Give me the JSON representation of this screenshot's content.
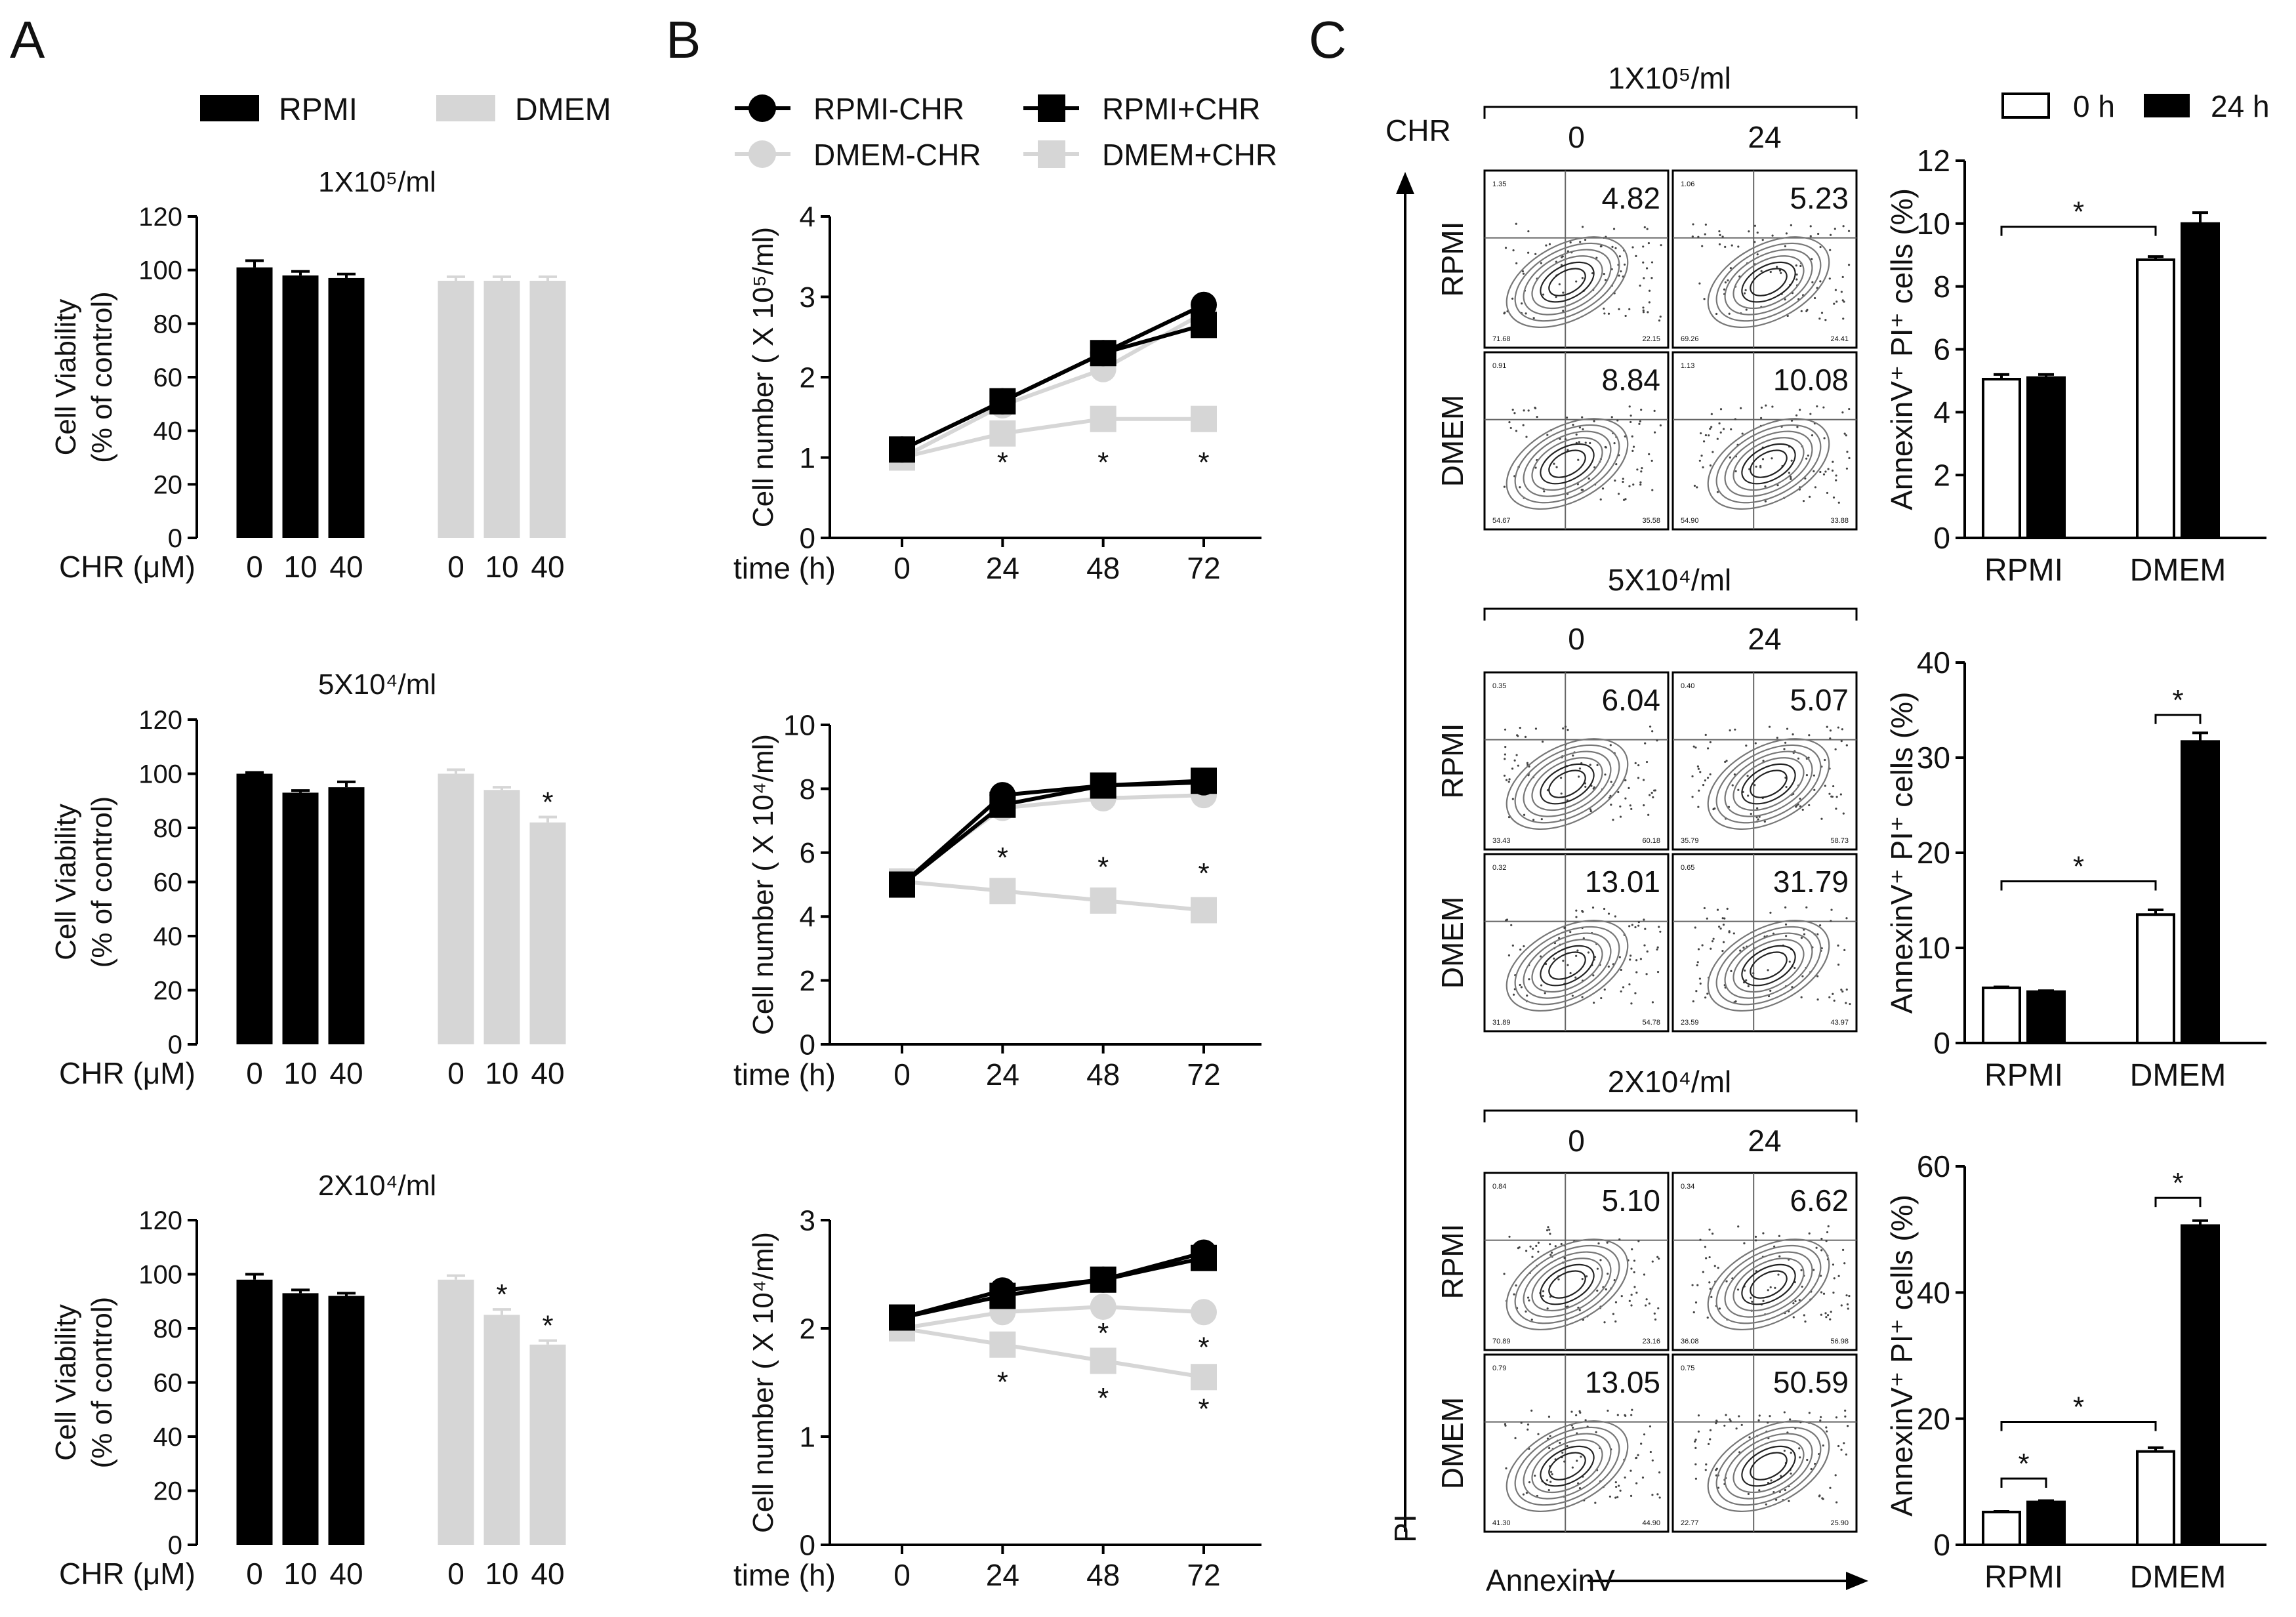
{
  "figure": {
    "panel_letters": [
      "A",
      "B",
      "C"
    ]
  },
  "colors": {
    "rpmi": "#000000",
    "dmem": "#d6d6d6",
    "open": "#ffffff",
    "plot_grey": "#888888"
  },
  "panel_a": {
    "legend": [
      "RPMI",
      "DMEM"
    ],
    "ylabel_lines": [
      "Cell Viability",
      "(% of control)"
    ],
    "xlabel": "CHR (μM)",
    "tick_labels": [
      "0",
      "10",
      "40",
      "0",
      "10",
      "40"
    ],
    "y_ticks": [
      "0",
      "20",
      "40",
      "60",
      "80",
      "100",
      "120"
    ],
    "sig_mark": "*"
  },
  "panel_b": {
    "legend": [
      "RPMI-CHR",
      "RPMI+CHR",
      "DMEM-CHR",
      "DMEM+CHR"
    ],
    "xlabel": "time (h)",
    "x_ticks": [
      "0",
      "24",
      "48",
      "72"
    ],
    "sig_mark": "*"
  },
  "panel_c": {
    "chr_label": "CHR",
    "time_labels": [
      "0",
      "24"
    ],
    "row_labels": [
      "RPMI",
      "DMEM"
    ],
    "y_axis_label": "PI",
    "x_axis_label": "AnnexinV",
    "legend": [
      "0 h",
      "24 h"
    ],
    "bar_ylabel": "AnnexinV⁺ PI⁺ cells (%)",
    "bar_groups": [
      "RPMI",
      "DMEM"
    ],
    "sig_mark": "*",
    "quadrant_values": [
      [
        [
          "4.82",
          "5.23"
        ],
        [
          "8.84",
          "10.08"
        ]
      ],
      [
        [
          "6.04",
          "5.07"
        ],
        [
          "13.01",
          "31.79"
        ]
      ],
      [
        [
          "5.10",
          "6.62"
        ],
        [
          "13.05",
          "50.59"
        ]
      ]
    ],
    "corner_values": [
      [
        [
          [
            "1.35",
            "71.68",
            "22.15"
          ],
          [
            "1.06",
            "69.26",
            "24.41"
          ]
        ],
        [
          [
            "0.91",
            "54.67",
            "35.58"
          ],
          [
            "1.13",
            "54.90",
            "33.88"
          ]
        ]
      ],
      [
        [
          [
            "0.35",
            "33.43",
            "60.18"
          ],
          [
            "0.40",
            "35.79",
            "58.73"
          ]
        ],
        [
          [
            "0.32",
            "31.89",
            "54.78"
          ],
          [
            "0.65",
            "23.59",
            "43.97"
          ]
        ]
      ],
      [
        [
          [
            "0.84",
            "70.89",
            "23.16"
          ],
          [
            "0.34",
            "36.08",
            "56.98"
          ]
        ],
        [
          [
            "0.79",
            "41.30",
            "44.90"
          ],
          [
            "0.75",
            "22.77",
            "25.90"
          ]
        ]
      ]
    ]
  },
  "chart_data": [
    {
      "id": "A1",
      "type": "bar",
      "title": "1X10⁵/ml",
      "categories": [
        "RPMI 0",
        "RPMI 10",
        "RPMI 40",
        "DMEM 0",
        "DMEM 10",
        "DMEM 40"
      ],
      "values": [
        101,
        98,
        97,
        96,
        96,
        96
      ],
      "errors": [
        2.5,
        1.5,
        1.5,
        1.5,
        1.5,
        1.5
      ],
      "significant": [
        false,
        false,
        false,
        false,
        false,
        false
      ],
      "ylabel": "Cell Viability (% of control)",
      "xlabel": "CHR (μM)",
      "ylim": [
        0,
        120
      ],
      "yticks": [
        0,
        20,
        40,
        60,
        80,
        100,
        120
      ]
    },
    {
      "id": "A2",
      "type": "bar",
      "title": "5X10⁴/ml",
      "categories": [
        "RPMI 0",
        "RPMI 10",
        "RPMI 40",
        "DMEM 0",
        "DMEM 10",
        "DMEM 40"
      ],
      "values": [
        100,
        93,
        95,
        100,
        94,
        82
      ],
      "errors": [
        0.5,
        0.8,
        2,
        1.5,
        1,
        2
      ],
      "significant": [
        false,
        false,
        false,
        false,
        false,
        true
      ],
      "ylabel": "Cell Viability (% of control)",
      "xlabel": "CHR (μM)",
      "ylim": [
        0,
        120
      ],
      "yticks": [
        0,
        20,
        40,
        60,
        80,
        100,
        120
      ]
    },
    {
      "id": "A3",
      "type": "bar",
      "title": "2X10⁴/ml",
      "categories": [
        "RPMI 0",
        "RPMI 10",
        "RPMI 40",
        "DMEM 0",
        "DMEM 10",
        "DMEM 40"
      ],
      "values": [
        98,
        93,
        92,
        98,
        85,
        74
      ],
      "errors": [
        2,
        1.2,
        1,
        1.5,
        2,
        1.5
      ],
      "significant": [
        false,
        false,
        false,
        false,
        true,
        true
      ],
      "ylabel": "Cell Viability (% of control)",
      "xlabel": "CHR (μM)",
      "ylim": [
        0,
        120
      ],
      "yticks": [
        0,
        20,
        40,
        60,
        80,
        100,
        120
      ]
    },
    {
      "id": "B1",
      "type": "line",
      "ylabel": "Cell number ( X 10⁵/ml)",
      "xlabel": "time (h)",
      "x": [
        0,
        24,
        48,
        72
      ],
      "ylim": [
        0,
        4
      ],
      "yticks": [
        0,
        1,
        2,
        3,
        4
      ],
      "series": [
        {
          "name": "RPMI-CHR",
          "values": [
            1.1,
            1.7,
            2.3,
            2.9
          ]
        },
        {
          "name": "RPMI+CHR",
          "values": [
            1.1,
            1.7,
            2.3,
            2.65
          ]
        },
        {
          "name": "DMEM-CHR",
          "values": [
            1.0,
            1.65,
            2.1,
            2.8
          ]
        },
        {
          "name": "DMEM+CHR",
          "values": [
            1.0,
            1.3,
            1.48,
            1.48
          ]
        }
      ],
      "sig_x": [
        24,
        48,
        72
      ],
      "sig_y": [
        1.0,
        1.0,
        1.0
      ]
    },
    {
      "id": "B2",
      "type": "line",
      "ylabel": "Cell number ( X 10⁴/ml)",
      "xlabel": "time (h)",
      "x": [
        0,
        24,
        48,
        72
      ],
      "ylim": [
        0,
        10
      ],
      "yticks": [
        0,
        2,
        4,
        6,
        8,
        10
      ],
      "series": [
        {
          "name": "RPMI-CHR",
          "values": [
            5.0,
            7.8,
            8.1,
            8.2
          ]
        },
        {
          "name": "RPMI+CHR",
          "values": [
            5.0,
            7.5,
            8.1,
            8.25
          ]
        },
        {
          "name": "DMEM-CHR",
          "values": [
            5.1,
            7.4,
            7.7,
            7.8
          ]
        },
        {
          "name": "DMEM+CHR",
          "values": [
            5.1,
            4.8,
            4.5,
            4.2
          ]
        }
      ],
      "sig_x": [
        24,
        48,
        72
      ],
      "sig_y": [
        6.0,
        5.7,
        5.5
      ]
    },
    {
      "id": "B3",
      "type": "line",
      "ylabel": "Cell number ( X 10⁴/ml)",
      "xlabel": "time (h)",
      "x": [
        0,
        24,
        48,
        72
      ],
      "ylim": [
        0,
        3
      ],
      "yticks": [
        0,
        1,
        2,
        3
      ],
      "series": [
        {
          "name": "RPMI-CHR",
          "values": [
            2.1,
            2.35,
            2.45,
            2.7
          ]
        },
        {
          "name": "RPMI+CHR",
          "values": [
            2.1,
            2.3,
            2.45,
            2.65
          ]
        },
        {
          "name": "DMEM-CHR",
          "values": [
            2.0,
            2.15,
            2.2,
            2.15
          ]
        },
        {
          "name": "DMEM+CHR",
          "values": [
            2.0,
            1.85,
            1.7,
            1.55
          ]
        }
      ],
      "sig_x": [
        24,
        48,
        72,
        48,
        72
      ],
      "sig_y": [
        1.55,
        1.4,
        1.3,
        2.0,
        1.87
      ]
    },
    {
      "id": "C1",
      "type": "bar",
      "categories": [
        "RPMI",
        "DMEM"
      ],
      "series": [
        {
          "name": "0 h",
          "values": [
            5.05,
            8.85
          ],
          "errors": [
            0.15,
            0.1
          ]
        },
        {
          "name": "24 h",
          "values": [
            5.1,
            10.0
          ],
          "errors": [
            0.1,
            0.35
          ]
        }
      ],
      "ylabel": "AnnexinV⁺ PI⁺ cells (%)",
      "ylim": [
        0,
        12
      ],
      "yticks": [
        0,
        2,
        4,
        6,
        8,
        10,
        12
      ],
      "brackets": [
        {
          "from": [
            0,
            0
          ],
          "to": [
            1,
            0
          ],
          "y": 9.9
        }
      ]
    },
    {
      "id": "C2",
      "type": "bar",
      "categories": [
        "RPMI",
        "DMEM"
      ],
      "series": [
        {
          "name": "0 h",
          "values": [
            5.8,
            13.5
          ],
          "errors": [
            0.1,
            0.5
          ]
        },
        {
          "name": "24 h",
          "values": [
            5.4,
            31.7
          ],
          "errors": [
            0.1,
            0.9
          ]
        }
      ],
      "ylabel": "AnnexinV⁺ PI⁺ cells (%)",
      "ylim": [
        0,
        40
      ],
      "yticks": [
        0,
        10,
        20,
        30,
        40
      ],
      "brackets": [
        {
          "from": [
            0,
            0
          ],
          "to": [
            1,
            0
          ],
          "y": 17
        },
        {
          "from": [
            1,
            0
          ],
          "to": [
            1,
            1
          ],
          "y": 34.5
        }
      ]
    },
    {
      "id": "C3",
      "type": "bar",
      "categories": [
        "RPMI",
        "DMEM"
      ],
      "series": [
        {
          "name": "0 h",
          "values": [
            5.2,
            14.8
          ],
          "errors": [
            0.1,
            0.6
          ]
        },
        {
          "name": "24 h",
          "values": [
            6.8,
            50.6
          ],
          "errors": [
            0.2,
            0.8
          ]
        }
      ],
      "ylabel": "AnnexinV⁺ PI⁺ cells (%)",
      "ylim": [
        0,
        60
      ],
      "yticks": [
        0,
        20,
        40,
        60
      ],
      "brackets": [
        {
          "from": [
            0,
            0
          ],
          "to": [
            0,
            1
          ],
          "y": 10.5
        },
        {
          "from": [
            0,
            0
          ],
          "to": [
            1,
            0
          ],
          "y": 19.5
        },
        {
          "from": [
            1,
            0
          ],
          "to": [
            1,
            1
          ],
          "y": 55
        }
      ]
    }
  ]
}
